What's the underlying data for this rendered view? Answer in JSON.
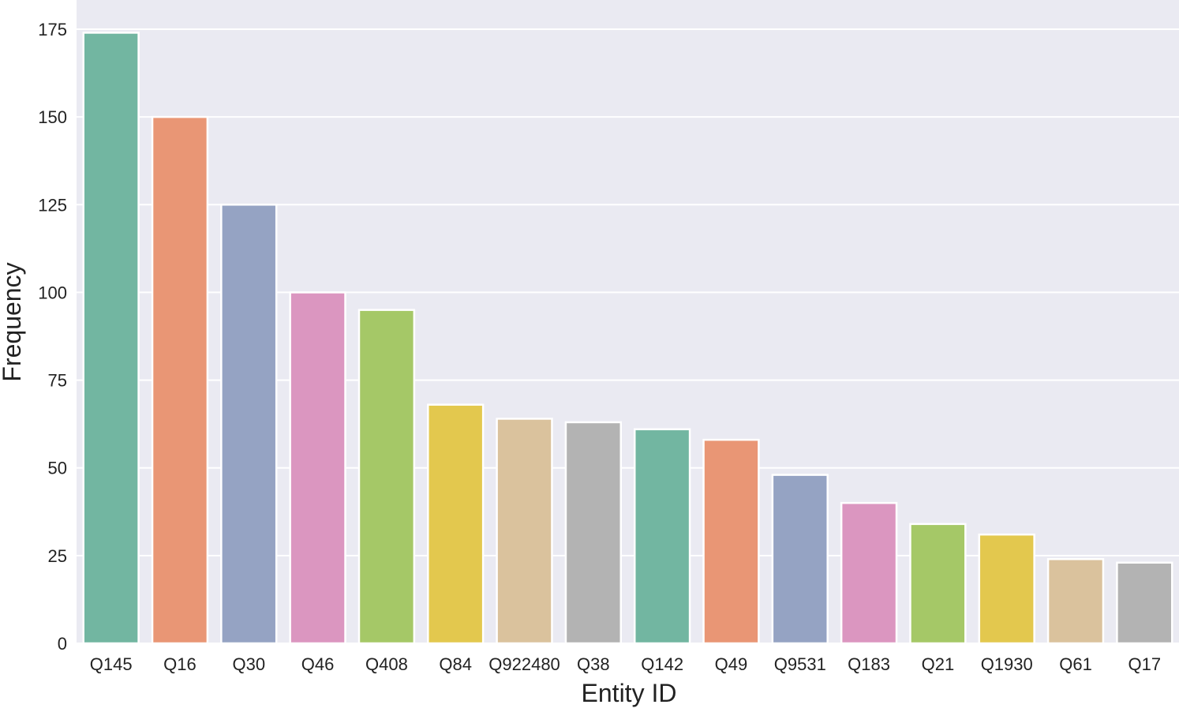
{
  "chart_data": {
    "type": "bar",
    "title": "",
    "xlabel": "Entity ID",
    "ylabel": "Frequency",
    "categories": [
      "Q145",
      "Q16",
      "Q30",
      "Q46",
      "Q408",
      "Q84",
      "Q922480",
      "Q38",
      "Q142",
      "Q49",
      "Q9531",
      "Q183",
      "Q21",
      "Q1930",
      "Q61",
      "Q17"
    ],
    "values": [
      174,
      150,
      125,
      100,
      95,
      68,
      64,
      63,
      61,
      58,
      48,
      40,
      34,
      31,
      24,
      23
    ],
    "ylim": [
      0,
      175
    ],
    "yticks": [
      0,
      25,
      50,
      75,
      100,
      125,
      150,
      175
    ],
    "grid": true,
    "background": "#eaeaf2",
    "palette": [
      "#72b6a1",
      "#e99675",
      "#95a3c3",
      "#db96c0",
      "#a5c867",
      "#e3c84e",
      "#dac29d",
      "#b3b3b3"
    ]
  }
}
